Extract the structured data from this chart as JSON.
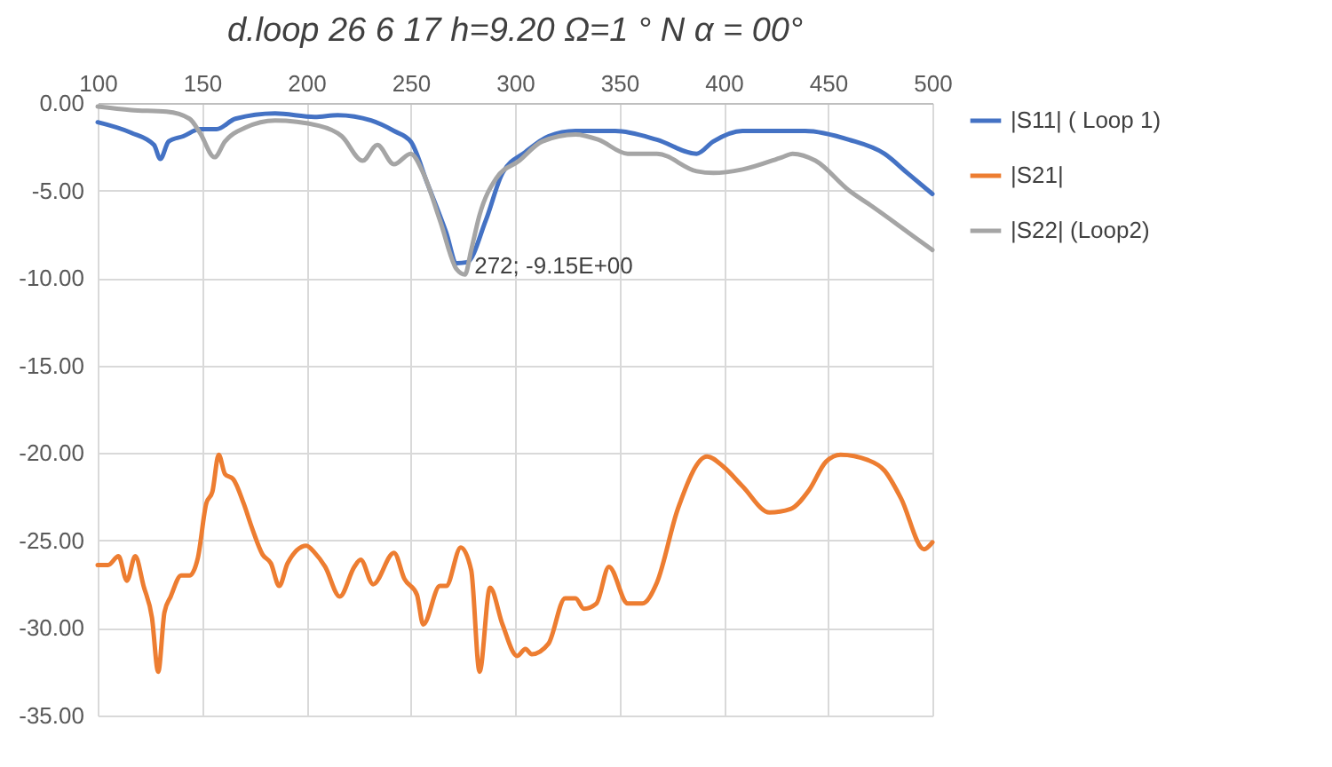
{
  "chart_data": {
    "type": "line",
    "title": "d.loop 26 6 17 h=9.20  Ω=1 ° N α = 00°",
    "xlim": [
      100,
      500
    ],
    "xticks": [
      100,
      150,
      200,
      250,
      300,
      350,
      400,
      450,
      500
    ],
    "ylim": [
      -35,
      0
    ],
    "yticks": [
      {
        "value": -35,
        "label": "-35.00"
      },
      {
        "value": -30,
        "label": "-30.00"
      },
      {
        "value": -25,
        "label": "-25.00"
      },
      {
        "value": -20,
        "label": "-20.00"
      },
      {
        "value": -15,
        "label": "-15.00"
      },
      {
        "value": -10,
        "label": "-10.00"
      },
      {
        "value": -5,
        "label": "-5.00"
      },
      {
        "value": 0,
        "label": "0.00"
      }
    ],
    "grid": true,
    "legend": "right",
    "marker": "none",
    "line_style": "solid",
    "annotations": [
      {
        "text": "272; -9.15E+00",
        "x": 272,
        "y": -9.15
      }
    ],
    "series": [
      {
        "name": "|S11| ( Loop 1)",
        "color": "#4472c4",
        "x": [
          100,
          116,
          127,
          130,
          134,
          141,
          149,
          157,
          166,
          185,
          204,
          215,
          231,
          242,
          250,
          258,
          267,
          272,
          277,
          286,
          294,
          305,
          316,
          329,
          348,
          368,
          387,
          395,
          409,
          439,
          460,
          477,
          488,
          500
        ],
        "values": [
          -1.1,
          -1.7,
          -2.4,
          -3.2,
          -2.2,
          -1.9,
          -1.5,
          -1.5,
          -0.9,
          -0.6,
          -0.8,
          -0.7,
          -1.0,
          -1.6,
          -2.2,
          -4.6,
          -7.4,
          -9.15,
          -9.1,
          -6.7,
          -4.0,
          -2.8,
          -1.9,
          -1.6,
          -1.6,
          -2.1,
          -2.9,
          -2.2,
          -1.6,
          -1.6,
          -2.1,
          -2.9,
          -4.0,
          -5.2
        ]
      },
      {
        "name": "|S21|",
        "color": "#ed7d31",
        "x": [
          100,
          105,
          110,
          114,
          118,
          122,
          126,
          129,
          132,
          135,
          140,
          144,
          148,
          152,
          155,
          158,
          161,
          165,
          170,
          174,
          179,
          183,
          187,
          191,
          200,
          204,
          209,
          216,
          223,
          226,
          232,
          242,
          247,
          253,
          256,
          264,
          267,
          274,
          279,
          283,
          288,
          294,
          301,
          305,
          308,
          316,
          324,
          329,
          333,
          339,
          345,
          354,
          361,
          368,
          378,
          392,
          400,
          409,
          422,
          432,
          441,
          449,
          456,
          469,
          477,
          485,
          496,
          500
        ],
        "values": [
          -26.4,
          -26.4,
          -25.9,
          -27.3,
          -25.9,
          -27.6,
          -29.4,
          -32.5,
          -29.1,
          -28.2,
          -27.0,
          -27.0,
          -26.0,
          -22.9,
          -22.2,
          -20.1,
          -21.2,
          -21.5,
          -22.9,
          -24.3,
          -25.8,
          -26.3,
          -27.6,
          -26.3,
          -25.3,
          -25.7,
          -26.5,
          -28.2,
          -26.5,
          -26.1,
          -27.5,
          -25.7,
          -27.2,
          -28.1,
          -29.8,
          -27.6,
          -27.6,
          -25.4,
          -26.7,
          -32.5,
          -27.7,
          -29.8,
          -31.6,
          -31.2,
          -31.5,
          -30.9,
          -28.3,
          -28.3,
          -28.9,
          -28.6,
          -26.5,
          -28.6,
          -28.6,
          -27.4,
          -23.2,
          -20.2,
          -20.8,
          -21.9,
          -23.4,
          -23.2,
          -22.1,
          -20.5,
          -20.1,
          -20.4,
          -21.0,
          -22.6,
          -25.5,
          -25.1
        ]
      },
      {
        "name": "|S22| (Loop2)",
        "color": "#a5a5a5",
        "x": [
          100,
          116,
          133,
          144,
          149,
          156,
          161,
          171,
          185,
          206,
          217,
          227,
          234,
          242,
          250,
          256,
          264,
          272,
          276,
          279,
          283,
          291,
          302,
          313,
          329,
          340,
          354,
          368,
          387,
          395,
          409,
          428,
          433,
          444,
          460,
          471,
          485,
          493,
          500
        ],
        "values": [
          -0.2,
          -0.4,
          -0.5,
          -0.9,
          -1.7,
          -3.1,
          -2.2,
          -1.4,
          -1.0,
          -1.3,
          -1.9,
          -3.3,
          -2.4,
          -3.5,
          -2.9,
          -4.0,
          -6.7,
          -9.5,
          -9.8,
          -8.4,
          -6.4,
          -4.3,
          -3.3,
          -2.2,
          -1.8,
          -2.1,
          -2.9,
          -2.9,
          -3.9,
          -4.0,
          -3.8,
          -3.1,
          -2.9,
          -3.3,
          -5.0,
          -5.9,
          -7.1,
          -7.8,
          -8.4
        ]
      }
    ]
  }
}
